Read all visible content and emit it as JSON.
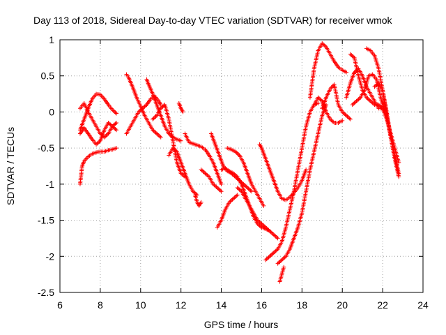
{
  "chart_data": {
    "type": "scatter",
    "title": "Day 113 of 2018, Sidereal Day-to-day VTEC variation (SDTVAR) for receiver wmok",
    "xlabel": "GPS time / hours",
    "ylabel": "SDTVAR / TECUs",
    "xlim": [
      6,
      24
    ],
    "ylim": [
      -2.5,
      1
    ],
    "xticks": [
      6,
      8,
      10,
      12,
      14,
      16,
      18,
      20,
      22,
      24
    ],
    "yticks": [
      -2.5,
      -2,
      -1.5,
      -1,
      -0.5,
      0,
      0.5,
      1
    ],
    "xtick_labels": [
      "6",
      "8",
      "10",
      "12",
      "14",
      "16",
      "18",
      "20",
      "22",
      "24"
    ],
    "ytick_labels": [
      "-2.5",
      "-2",
      "-1.5",
      "-1",
      "-0.5",
      "0",
      "0.5",
      "1"
    ],
    "grid": true,
    "marker": "+",
    "series": [
      {
        "name": "SDTVAR",
        "color": "#ff0000",
        "tracks": [
          {
            "x": [
              7.0,
              7.1,
              7.2,
              7.4,
              7.6,
              7.8,
              8.0,
              8.2,
              8.4,
              8.6,
              8.8
            ],
            "y": [
              -1.0,
              -0.75,
              -0.68,
              -0.62,
              -0.58,
              -0.56,
              -0.55,
              -0.55,
              -0.53,
              -0.52,
              -0.5
            ]
          },
          {
            "x": [
              7.0,
              7.2,
              7.4,
              7.6,
              7.8,
              8.0,
              8.2,
              8.4,
              8.6,
              8.8
            ],
            "y": [
              -0.25,
              -0.1,
              0.05,
              0.18,
              0.25,
              0.24,
              0.18,
              0.1,
              0.03,
              -0.02
            ]
          },
          {
            "x": [
              7.0,
              7.2,
              7.4,
              7.6,
              7.8,
              8.0,
              8.2,
              8.4,
              8.6,
              8.8
            ],
            "y": [
              -0.3,
              -0.22,
              -0.3,
              -0.38,
              -0.45,
              -0.4,
              -0.25,
              -0.15,
              -0.2,
              -0.25
            ]
          },
          {
            "x": [
              7.0,
              7.2,
              7.4,
              7.6,
              7.8,
              8.0,
              8.2,
              8.4,
              8.6,
              8.8
            ],
            "y": [
              0.05,
              0.12,
              0.0,
              -0.1,
              -0.2,
              -0.3,
              -0.35,
              -0.3,
              -0.2,
              -0.15
            ]
          },
          {
            "x": [
              9.3,
              9.4,
              9.6,
              9.8,
              10.0,
              10.2,
              10.4,
              10.6,
              10.8,
              11.0
            ],
            "y": [
              0.52,
              0.48,
              0.35,
              0.2,
              0.08,
              -0.05,
              -0.15,
              -0.25,
              -0.3,
              -0.35
            ]
          },
          {
            "x": [
              9.3,
              9.5,
              9.7,
              9.9,
              10.1,
              10.3,
              10.5,
              10.7,
              10.9,
              11.0
            ],
            "y": [
              -0.3,
              -0.2,
              -0.1,
              0.0,
              0.05,
              0.1,
              0.18,
              0.22,
              0.15,
              0.1
            ]
          },
          {
            "x": [
              10.3,
              10.4,
              10.6,
              10.8,
              11.0,
              11.2,
              11.4,
              11.6,
              11.8,
              12.0
            ],
            "y": [
              0.45,
              0.38,
              0.25,
              0.1,
              -0.05,
              -0.2,
              -0.3,
              -0.35,
              -0.38,
              -0.4
            ]
          },
          {
            "x": [
              10.6,
              10.8,
              11.0,
              11.2,
              11.4,
              11.6,
              11.8,
              12.0,
              12.2
            ],
            "y": [
              -0.1,
              -0.05,
              0.05,
              0.1,
              -0.1,
              -0.4,
              -0.7,
              -0.85,
              -0.9
            ]
          },
          {
            "x": [
              11.4,
              11.6,
              11.8,
              12.0,
              12.2,
              12.4,
              12.6,
              12.8
            ],
            "y": [
              -0.6,
              -0.5,
              -0.55,
              -0.7,
              -0.85,
              -1.0,
              -1.1,
              -1.15
            ]
          },
          {
            "x": [
              11.9,
              12.0,
              12.1
            ],
            "y": [
              0.12,
              0.05,
              0.0
            ]
          },
          {
            "x": [
              12.2,
              12.4,
              12.6,
              12.8,
              13.0,
              13.2,
              13.4,
              13.6,
              13.8,
              14.0
            ],
            "y": [
              -0.3,
              -0.42,
              -0.44,
              -0.46,
              -0.48,
              -0.52,
              -0.6,
              -0.7,
              -0.85,
              -1.0
            ]
          },
          {
            "x": [
              12.7,
              12.8,
              12.9,
              13.0
            ],
            "y": [
              -1.15,
              -1.25,
              -1.3,
              -1.25
            ]
          },
          {
            "x": [
              13.0,
              13.2,
              13.4,
              13.6,
              13.8,
              14.0
            ],
            "y": [
              -0.8,
              -0.85,
              -0.9,
              -1.0,
              -1.05,
              -1.1
            ]
          },
          {
            "x": [
              13.5,
              13.7,
              13.9,
              14.1,
              14.3,
              14.5,
              14.7,
              14.9,
              15.1,
              15.3,
              15.5
            ],
            "y": [
              -0.3,
              -0.45,
              -0.6,
              -0.75,
              -0.82,
              -0.85,
              -0.9,
              -0.95,
              -1.0,
              -1.05,
              -1.1
            ]
          },
          {
            "x": [
              13.8,
              14.0,
              14.2,
              14.4,
              14.6,
              14.8
            ],
            "y": [
              -1.6,
              -1.5,
              -1.35,
              -1.25,
              -1.2,
              -1.15
            ]
          },
          {
            "x": [
              14.0,
              14.2,
              14.4,
              14.6,
              14.8,
              15.0,
              15.2,
              15.4,
              15.6,
              15.8,
              16.0,
              16.2,
              16.4
            ],
            "y": [
              -0.8,
              -0.78,
              -0.82,
              -0.85,
              -0.9,
              -1.0,
              -1.15,
              -1.3,
              -1.45,
              -1.55,
              -1.6,
              -1.62,
              -1.65
            ]
          },
          {
            "x": [
              14.3,
              14.5,
              14.7,
              14.9,
              15.1,
              15.3,
              15.5,
              15.7,
              15.9,
              16.1
            ],
            "y": [
              -0.5,
              -0.52,
              -0.55,
              -0.6,
              -0.7,
              -0.85,
              -1.0,
              -1.1,
              -1.2,
              -1.3
            ]
          },
          {
            "x": [
              14.8,
              15.0,
              15.2,
              15.4,
              15.6,
              15.8,
              16.0,
              16.2,
              16.4,
              16.6,
              16.8
            ],
            "y": [
              -1.05,
              -1.1,
              -1.2,
              -1.3,
              -1.4,
              -1.5,
              -1.55,
              -1.6,
              -1.65,
              -1.7,
              -1.75
            ]
          },
          {
            "x": [
              15.9,
              16.0,
              16.2,
              16.4,
              16.6,
              16.8,
              17.0,
              17.2,
              17.4,
              17.6,
              17.8,
              18.0,
              18.2
            ],
            "y": [
              -0.45,
              -0.5,
              -0.65,
              -0.8,
              -0.95,
              -1.1,
              -1.2,
              -1.22,
              -1.18,
              -1.12,
              -1.05,
              -0.95,
              -0.8
            ]
          },
          {
            "x": [
              16.2,
              16.4,
              16.6,
              16.8,
              17.0,
              17.2,
              17.4,
              17.6,
              17.8,
              18.0,
              18.2,
              18.4,
              18.6,
              18.8
            ],
            "y": [
              -2.05,
              -2.0,
              -1.95,
              -1.9,
              -1.8,
              -1.6,
              -1.35,
              -1.1,
              -0.8,
              -0.5,
              -0.2,
              0.0,
              0.1,
              0.12
            ]
          },
          {
            "x": [
              16.8,
              17.0,
              17.2,
              17.4,
              17.6,
              17.8,
              18.0,
              18.2,
              18.4,
              18.6,
              18.8,
              19.0,
              19.2
            ],
            "y": [
              -2.1,
              -2.05,
              -2.0,
              -1.9,
              -1.75,
              -1.6,
              -1.4,
              -1.1,
              -0.8,
              -0.55,
              -0.3,
              -0.05,
              0.1
            ]
          },
          {
            "x": [
              16.9,
              17.0,
              17.1
            ],
            "y": [
              -2.35,
              -2.25,
              -2.15
            ]
          },
          {
            "x": [
              18.4,
              18.6,
              18.8,
              19.0,
              19.2,
              19.4,
              19.6,
              19.8,
              20.0,
              20.2
            ],
            "y": [
              0.2,
              0.6,
              0.85,
              0.95,
              0.9,
              0.8,
              0.7,
              0.62,
              0.58,
              0.55
            ]
          },
          {
            "x": [
              18.6,
              18.8,
              19.0,
              19.2,
              19.4,
              19.6,
              19.8,
              20.0
            ],
            "y": [
              0.1,
              0.2,
              0.15,
              0.0,
              -0.1,
              -0.15,
              -0.15,
              -0.12
            ]
          },
          {
            "x": [
              19.0,
              19.2,
              19.4,
              19.6,
              19.8,
              20.0,
              20.2,
              20.4
            ],
            "y": [
              0.05,
              0.2,
              0.32,
              0.38,
              0.1,
              0.0,
              -0.05,
              -0.1
            ]
          },
          {
            "x": [
              20.2,
              20.4,
              20.6,
              20.8,
              21.0,
              21.2,
              21.4,
              21.6,
              21.8,
              22.0
            ],
            "y": [
              0.2,
              0.4,
              0.55,
              0.6,
              0.5,
              0.35,
              0.25,
              0.15,
              0.05,
              0.05
            ]
          },
          {
            "x": [
              20.4,
              20.6,
              20.8,
              21.0,
              21.2,
              21.4,
              21.6,
              21.8,
              22.0,
              22.2,
              22.4,
              22.6,
              22.8
            ],
            "y": [
              0.8,
              0.75,
              0.5,
              0.3,
              0.2,
              0.15,
              0.1,
              0.1,
              0.05,
              -0.1,
              -0.3,
              -0.5,
              -0.7
            ]
          },
          {
            "x": [
              20.5,
              20.7,
              20.9,
              21.1,
              21.3,
              21.5,
              21.7,
              21.9,
              22.1
            ],
            "y": [
              0.1,
              0.15,
              0.2,
              0.3,
              0.5,
              0.52,
              0.45,
              0.2,
              0.0
            ]
          },
          {
            "x": [
              21.2,
              21.4,
              21.6,
              21.8,
              22.0,
              22.2,
              22.4,
              22.6,
              22.8
            ],
            "y": [
              0.88,
              0.85,
              0.78,
              0.6,
              0.3,
              -0.05,
              -0.35,
              -0.6,
              -0.85
            ]
          },
          {
            "x": [
              21.6,
              21.8,
              22.0,
              22.2,
              22.4,
              22.6,
              22.8
            ],
            "y": [
              0.35,
              0.4,
              0.3,
              0.0,
              -0.35,
              -0.65,
              -0.9
            ]
          }
        ]
      }
    ]
  }
}
